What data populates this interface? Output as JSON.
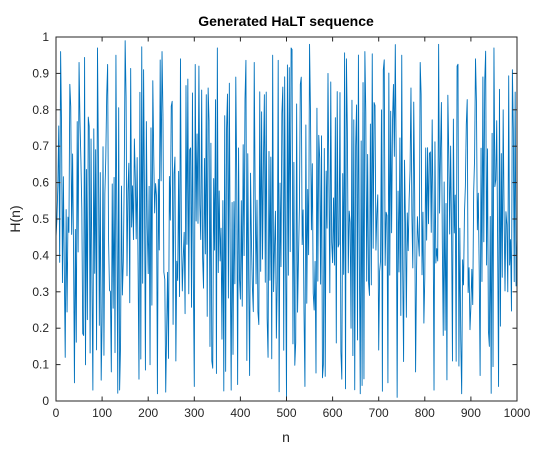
{
  "chart_data": {
    "type": "line",
    "title": "Generated HaLT sequence",
    "xlabel": "n",
    "ylabel": "H(n)",
    "xlim": [
      0,
      1000
    ],
    "ylim": [
      0,
      1
    ],
    "xticks": [
      "0",
      "100",
      "200",
      "300",
      "400",
      "500",
      "600",
      "700",
      "800",
      "900",
      "1000"
    ],
    "yticks": [
      "0",
      "0.1",
      "0.2",
      "0.3",
      "0.4",
      "0.5",
      "0.6",
      "0.7",
      "0.8",
      "0.9",
      "1"
    ],
    "grid": false,
    "line_color": "#0072BD",
    "series": [
      {
        "x": [
          0,
          10,
          20,
          30,
          40,
          50,
          60,
          70,
          80,
          90,
          100,
          110,
          120,
          130,
          140,
          150,
          160,
          170,
          180,
          190,
          200,
          210,
          220,
          230,
          240,
          250,
          260,
          270,
          280,
          290,
          300,
          310,
          320,
          330,
          340,
          350,
          360,
          370,
          380,
          390,
          400,
          410,
          420,
          430,
          440,
          450,
          460,
          470,
          480,
          490,
          500,
          510,
          520,
          530,
          540,
          550,
          560,
          570,
          580,
          590,
          600,
          610,
          620,
          630,
          640,
          650,
          660,
          670,
          680,
          690,
          700,
          710,
          720,
          730,
          740,
          750,
          760,
          770,
          780,
          790,
          800,
          810,
          820,
          830,
          840,
          850,
          860,
          870,
          880,
          890,
          900,
          910,
          920,
          930,
          940,
          950,
          960,
          970,
          980,
          990,
          1000
        ],
        "y": [
          0.45,
          0.96,
          0.12,
          0.87,
          0.05,
          0.93,
          0.18,
          0.78,
          0.03,
          0.97,
          0.22,
          0.84,
          0.08,
          0.95,
          0.15,
          0.99,
          0.27,
          0.72,
          0.06,
          0.91,
          0.35,
          0.88,
          0.02,
          0.96,
          0.19,
          0.81,
          0.11,
          0.94,
          0.24,
          0.69,
          0.04,
          0.92,
          0.31,
          0.86,
          0.09,
          0.97,
          0.17,
          0.75,
          0.03,
          0.89,
          0.28,
          0.83,
          0.07,
          0.93,
          0.21,
          0.66,
          0.12,
          0.95,
          0.33,
          0.79,
          0.01,
          0.97,
          0.16,
          0.87,
          0.04,
          0.98,
          0.25,
          0.73,
          0.1,
          0.9,
          0.38,
          0.85,
          0.06,
          0.94,
          0.2,
          0.7,
          0.02,
          0.96,
          0.29,
          0.82,
          0.14,
          0.91,
          0.05,
          0.77,
          0.01,
          0.95,
          0.23,
          0.86,
          0.08,
          0.93,
          0.34,
          0.68,
          0.03,
          0.98,
          0.18,
          0.84,
          0.11,
          0.92,
          0.02,
          0.76,
          0.26,
          0.94,
          0.07,
          0.88,
          0.15,
          0.97,
          0.04,
          0.8,
          0.3,
          0.91,
          0.45
        ]
      }
    ]
  }
}
